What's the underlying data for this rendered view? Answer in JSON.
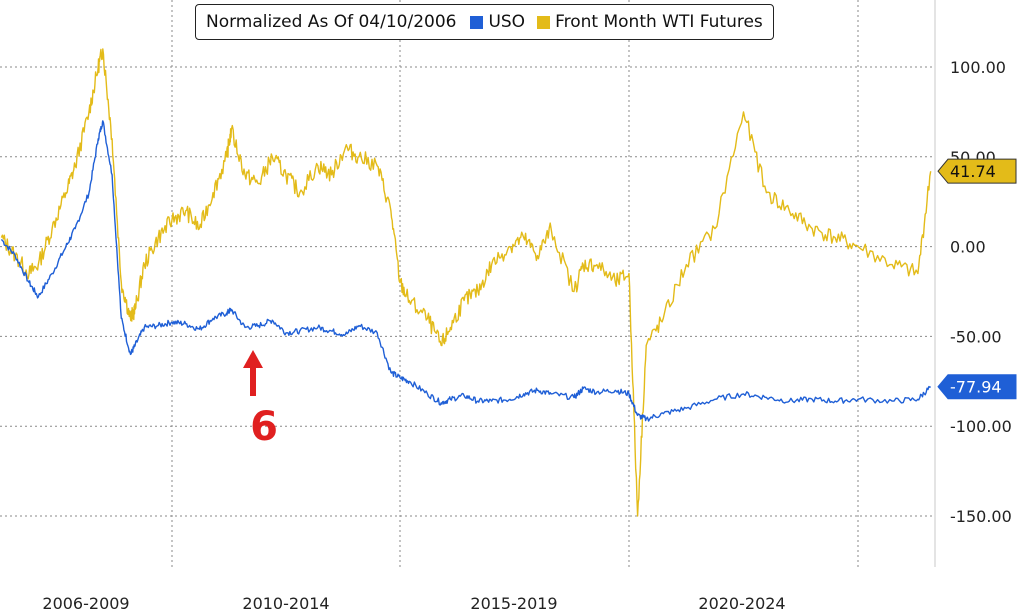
{
  "chart_data": {
    "type": "line",
    "title": "Normalized As Of 04/10/2006",
    "ylim": [
      -170,
      130
    ],
    "y_ticks": [
      100,
      50,
      0,
      -50,
      -100,
      -150
    ],
    "y_tick_labels": [
      "100.00",
      "50.00",
      "0.00",
      "-50.00",
      "-100.00",
      "-150.00"
    ],
    "x_period_labels": [
      "2006-2009",
      "2010-2014",
      "2015-2019",
      "2020-2024"
    ],
    "grid": true,
    "legend_position": "top-center",
    "colors": {
      "uso": "#1f5fd6",
      "wti": "#e3bb19",
      "annotation": "#e02020"
    },
    "series": [
      {
        "name": "USO",
        "color": "#1f5fd6",
        "last_value_label": "-77.94",
        "x": [
          2006.3,
          2006.6,
          2006.9,
          2007.1,
          2007.4,
          2007.7,
          2007.9,
          2008.2,
          2008.4,
          2008.5,
          2008.7,
          2008.9,
          2009.1,
          2009.2,
          2009.4,
          2009.7,
          2010.0,
          2010.3,
          2010.6,
          2010.9,
          2011.2,
          2011.3,
          2011.6,
          2011.9,
          2012.2,
          2012.5,
          2012.8,
          2013.2,
          2013.5,
          2013.8,
          2014.1,
          2014.5,
          2014.8,
          2015.0,
          2015.2,
          2015.6,
          2015.9,
          2016.1,
          2016.4,
          2016.7,
          2017.0,
          2017.4,
          2017.7,
          2018.0,
          2018.3,
          2018.8,
          2019.0,
          2019.3,
          2019.7,
          2020.0,
          2020.15,
          2020.3,
          2020.6,
          2021.0,
          2021.5,
          2022.0,
          2022.4,
          2022.8,
          2023.2,
          2023.6,
          2024.0,
          2024.4,
          2024.7,
          2024.85
        ],
        "y": [
          4,
          -5,
          -20,
          -28,
          -15,
          0,
          10,
          30,
          60,
          70,
          40,
          -40,
          -60,
          -55,
          -45,
          -44,
          -42,
          -43,
          -46,
          -40,
          -37,
          -35,
          -45,
          -44,
          -41,
          -48,
          -47,
          -45,
          -47,
          -49,
          -44,
          -48,
          -70,
          -73,
          -75,
          -82,
          -87,
          -85,
          -83,
          -86,
          -86,
          -85,
          -82,
          -80,
          -82,
          -84,
          -79,
          -81,
          -80,
          -82,
          -94,
          -96,
          -93,
          -90,
          -85,
          -82,
          -84,
          -86,
          -85,
          -86,
          -85,
          -86,
          -85,
          -78
        ]
      },
      {
        "name": "Front Month WTI Futures",
        "color": "#e3bb19",
        "last_value_label": "41.74",
        "x": [
          2006.3,
          2006.6,
          2006.9,
          2007.1,
          2007.4,
          2007.7,
          2007.9,
          2008.2,
          2008.4,
          2008.5,
          2008.7,
          2008.9,
          2009.1,
          2009.2,
          2009.4,
          2009.7,
          2010.0,
          2010.3,
          2010.6,
          2010.9,
          2011.2,
          2011.3,
          2011.6,
          2011.9,
          2012.2,
          2012.5,
          2012.8,
          2013.2,
          2013.5,
          2013.8,
          2014.1,
          2014.5,
          2014.8,
          2015.0,
          2015.2,
          2015.6,
          2015.9,
          2016.1,
          2016.4,
          2016.7,
          2017.0,
          2017.4,
          2017.7,
          2018.0,
          2018.3,
          2018.8,
          2019.0,
          2019.3,
          2019.7,
          2020.0,
          2020.15,
          2020.3,
          2020.6,
          2021.0,
          2021.5,
          2022.0,
          2022.4,
          2022.8,
          2023.2,
          2023.6,
          2024.0,
          2024.4,
          2024.7,
          2024.85
        ],
        "y": [
          5,
          -5,
          -15,
          -10,
          10,
          30,
          45,
          75,
          100,
          110,
          60,
          -20,
          -40,
          -35,
          -10,
          5,
          15,
          20,
          10,
          30,
          50,
          65,
          40,
          35,
          50,
          40,
          30,
          45,
          40,
          55,
          50,
          45,
          20,
          -20,
          -30,
          -40,
          -55,
          -45,
          -30,
          -25,
          -10,
          0,
          5,
          -5,
          10,
          -25,
          -10,
          -10,
          -20,
          -15,
          -150,
          -55,
          -40,
          -10,
          10,
          75,
          30,
          20,
          10,
          5,
          0,
          -10,
          -15,
          42
        ]
      }
    ],
    "annotations": [
      {
        "text": "6",
        "arrow": "up"
      }
    ]
  }
}
